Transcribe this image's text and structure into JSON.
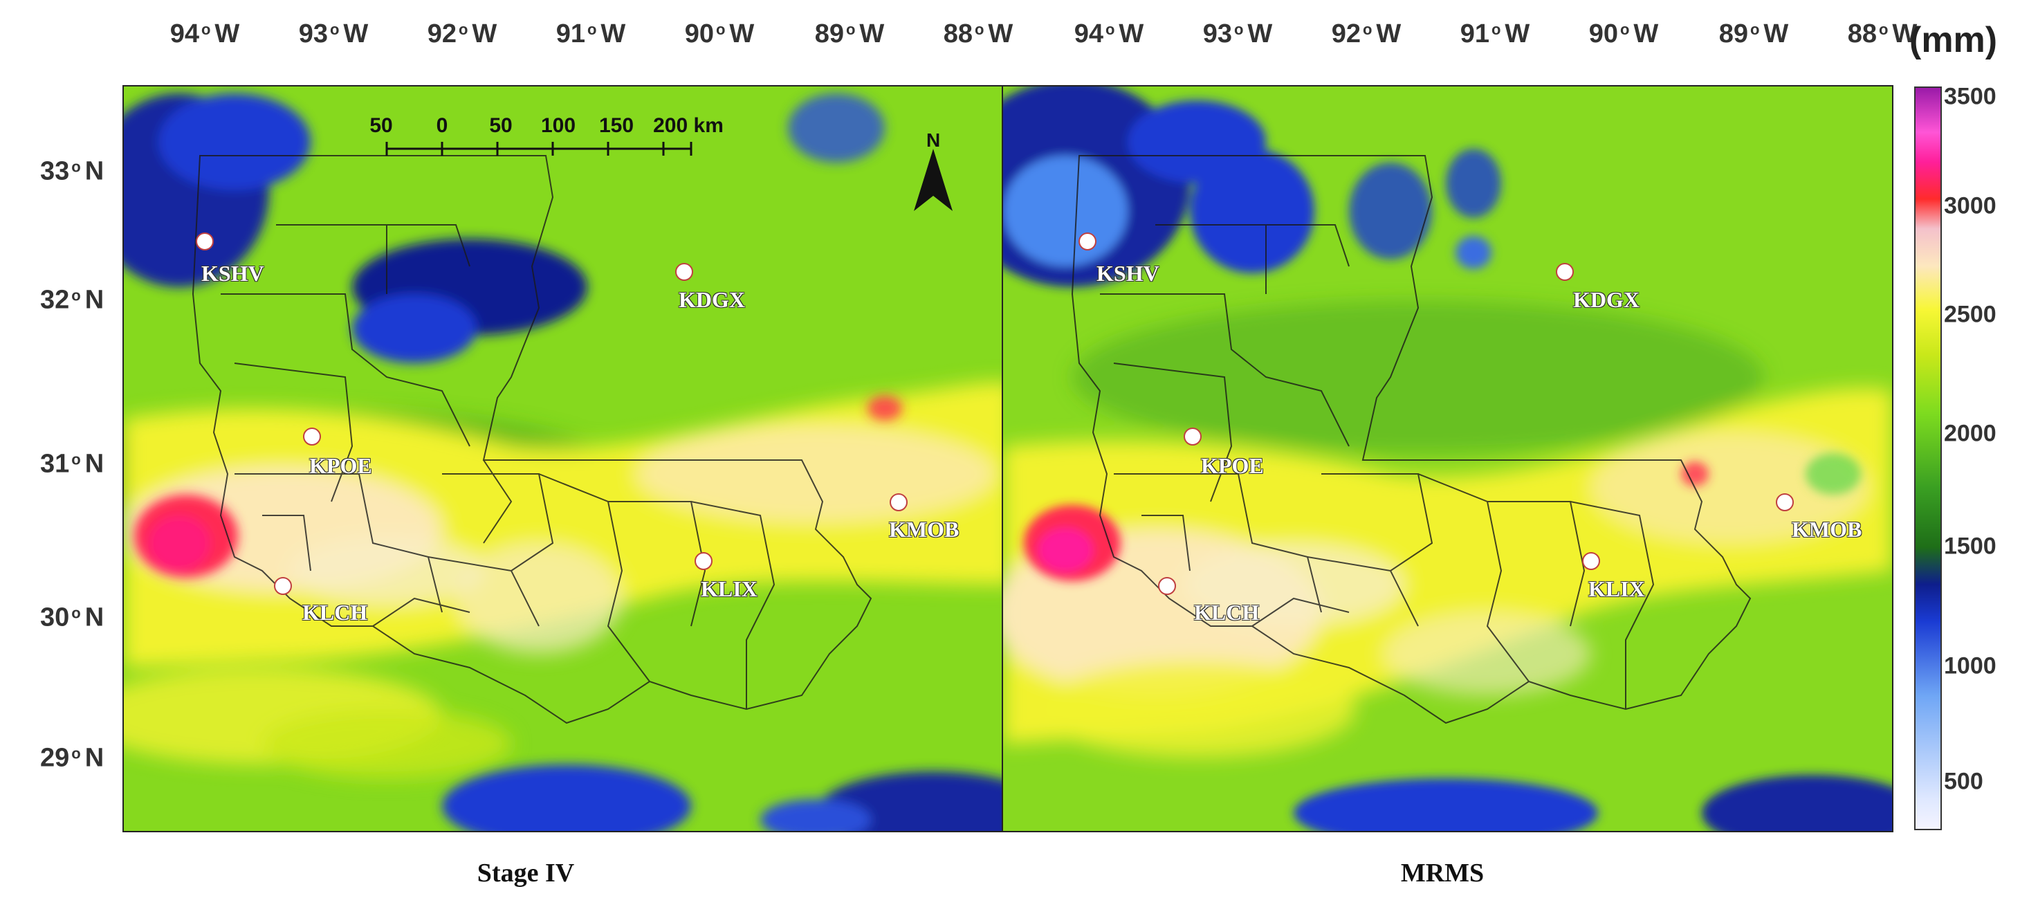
{
  "longitude_labels": [
    {
      "deg": "94",
      "hem": "W"
    },
    {
      "deg": "93",
      "hem": "W"
    },
    {
      "deg": "92",
      "hem": "W"
    },
    {
      "deg": "91",
      "hem": "W"
    },
    {
      "deg": "90",
      "hem": "W"
    },
    {
      "deg": "89",
      "hem": "W"
    },
    {
      "deg": "88",
      "hem": "W"
    }
  ],
  "latitude_labels": [
    {
      "deg": "33",
      "hem": "N"
    },
    {
      "deg": "32",
      "hem": "N"
    },
    {
      "deg": "31",
      "hem": "N"
    },
    {
      "deg": "30",
      "hem": "N"
    },
    {
      "deg": "29",
      "hem": "N"
    }
  ],
  "panels": [
    {
      "caption": "Stage IV"
    },
    {
      "caption": "MRMS"
    }
  ],
  "stations": [
    {
      "name": "KSHV"
    },
    {
      "name": "KDGX"
    },
    {
      "name": "KPOE"
    },
    {
      "name": "KMOB"
    },
    {
      "name": "KLIX"
    },
    {
      "name": "KLCH"
    }
  ],
  "scale_bar": {
    "labels": [
      "50",
      "0",
      "50",
      "100",
      "150",
      "200 km"
    ]
  },
  "north_arrow": {
    "label": "N"
  },
  "colorbar": {
    "unit": "(mm)",
    "ticks": [
      "3500",
      "3000",
      "2500",
      "2000",
      "1500",
      "1000",
      "500"
    ],
    "colors": {
      "low": "#f4f4ff",
      "blue": "#1a3bd3",
      "green": "#7ddb1f",
      "yellow": "#f7f735",
      "red": "#ff2b2b",
      "magenta": "#9a1aa8"
    }
  }
}
